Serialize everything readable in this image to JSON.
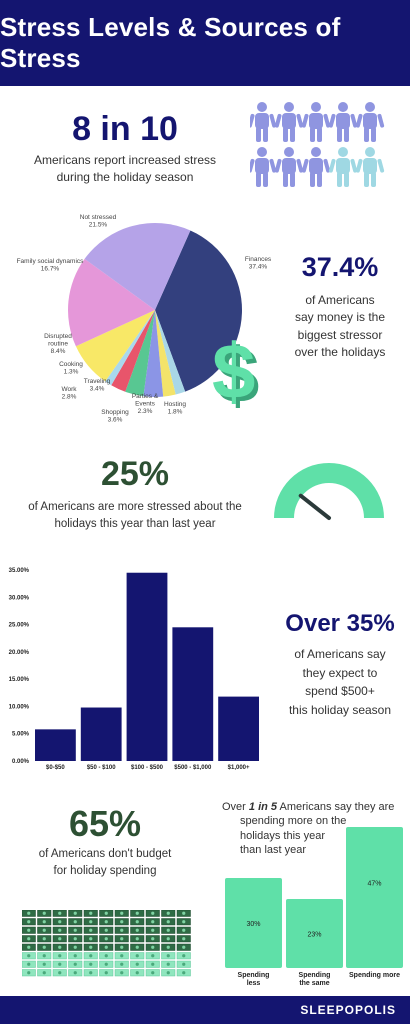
{
  "header": {
    "title": "Stress Levels & Sources of Stress"
  },
  "section1": {
    "stat": "8 in 10",
    "text_line1": "Americans report increased stress",
    "text_line2": "during the holiday season",
    "people_total": 10,
    "people_highlighted": 8
  },
  "section2": {
    "stat": "37.4%",
    "text_line1": "of Americans",
    "text_line2": "say money is the",
    "text_line3": "biggest stressor",
    "text_line4": "over the holidays"
  },
  "section3": {
    "stat": "25%",
    "text_line1": "of Americans are more stressed about the",
    "text_line2": "holidays this year than last year"
  },
  "section4": {
    "stat": "Over 35%",
    "text_line1": "of Americans say",
    "text_line2": "they expect to",
    "text_line3": "spend $500+",
    "text_line4": "this holiday season"
  },
  "section5": {
    "stat": "65%",
    "text_line1": "of Americans don't budget",
    "text_line2": "for holiday spending",
    "intro_prefix": "Over ",
    "intro_emph": "1 in 5",
    "intro_suffix": " Americans say they are",
    "intro_line2": "spending more on the",
    "intro_line3": "holidays this year",
    "intro_line4": "than last year"
  },
  "footer": {
    "logo": "SLEEPOPOLIS"
  },
  "colors": {
    "navy": "#141570",
    "green": "#5fe0a8",
    "dark_green": "#2d5033",
    "people_highlighted": "#8f95e0",
    "people_other": "#9fd8e3"
  },
  "icons": {
    "dollar": "dollar-sign-icon",
    "gauge": "gauge-icon",
    "people": "person-icon",
    "money": "money-bill-icon"
  },
  "chart_data": [
    {
      "type": "pie",
      "title": "",
      "categories": [
        "Finances",
        "Hosting",
        "Parties & Events",
        "Shopping",
        "Traveling",
        "Work",
        "Cooking",
        "Disrupted routine",
        "Family social dynamics",
        "Not stressed"
      ],
      "labels": [
        "Finances",
        "Hosting",
        "Parties &\nEvents",
        "Shopping",
        "Traveling",
        "Work",
        "Cooking",
        "Disrupted\nroutine",
        "Family social dynamics",
        "Not stressed"
      ],
      "values": [
        37.4,
        1.8,
        2.3,
        3.6,
        3.4,
        2.8,
        1.3,
        8.4,
        16.7,
        21.5
      ],
      "value_labels": [
        "37.4%",
        "1.8%",
        "2.3%",
        "3.6%",
        "3.4%",
        "2.8%",
        "1.3%",
        "8.4%",
        "16.7%",
        "21.5%"
      ],
      "colors": [
        "#33407e",
        "#a9d7e7",
        "#f3e36a",
        "#8b95e6",
        "#58c792",
        "#e8556b",
        "#a9d8ee",
        "#f8e867",
        "#e597d9",
        "#b5a3e8"
      ]
    },
    {
      "type": "bar",
      "title": "",
      "categories": [
        "$0-$50",
        "$50 - $100",
        "$100 - $500",
        "$500 - $1,000",
        "$1,000+"
      ],
      "values": [
        5.8,
        9.8,
        34.5,
        24.5,
        11.8
      ],
      "ylim": [
        0,
        35
      ],
      "yticks": [
        "0.00%",
        "5.00%",
        "10.00%",
        "15.00%",
        "20.00%",
        "25.00%",
        "30.00%",
        "35.00%"
      ],
      "color": "#141570"
    },
    {
      "type": "bar",
      "title": "",
      "categories": [
        "Spending less",
        "Spending the same",
        "Spending more"
      ],
      "category_lines": [
        [
          "Spending",
          "less"
        ],
        [
          "Spending",
          "the same"
        ],
        [
          "Spending more"
        ]
      ],
      "values": [
        30,
        23,
        47
      ],
      "value_labels": [
        "30%",
        "23%",
        "47%"
      ],
      "color": "#5fe0a8"
    },
    {
      "type": "gauge",
      "values": [
        25
      ],
      "color": "#5fe0a8"
    }
  ]
}
